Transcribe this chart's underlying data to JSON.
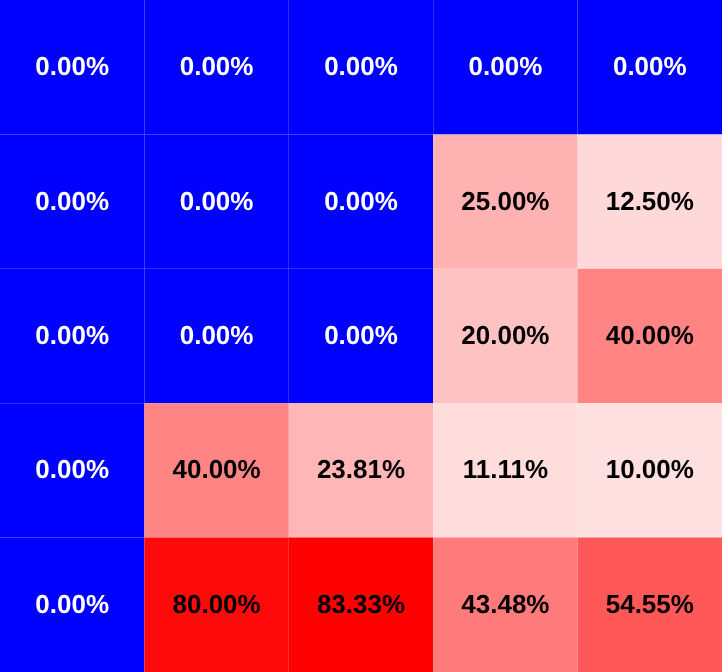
{
  "chart_data": {
    "type": "heatmap",
    "categories": [
      null,
      null,
      null,
      null,
      null
    ],
    "y_categories": [
      null,
      null,
      null,
      null,
      null
    ],
    "cells": [
      [
        0,
        0,
        0,
        0,
        0
      ],
      [
        0,
        0,
        0,
        25,
        12.5
      ],
      [
        0,
        0,
        0,
        20,
        40
      ],
      [
        0,
        40,
        23.81,
        11.11,
        10
      ],
      [
        0,
        80,
        83.33,
        43.48,
        54.55
      ]
    ],
    "cell_labels": [
      [
        "0.00%",
        "0.00%",
        "0.00%",
        "0.00%",
        "0.00%"
      ],
      [
        "0.00%",
        "0.00%",
        "0.00%",
        "25.00%",
        "12.50%"
      ],
      [
        "0.00%",
        "0.00%",
        "0.00%",
        "20.00%",
        "40.00%"
      ],
      [
        "0.00%",
        "40.00%",
        "23.81%",
        "11.11%",
        "10.00%"
      ],
      [
        "0.00%",
        "80.00%",
        "83.33%",
        "43.48%",
        "54.55%"
      ]
    ],
    "colors": [
      "#0000ff",
      "#ffffff",
      "#ff0000"
    ]
  }
}
